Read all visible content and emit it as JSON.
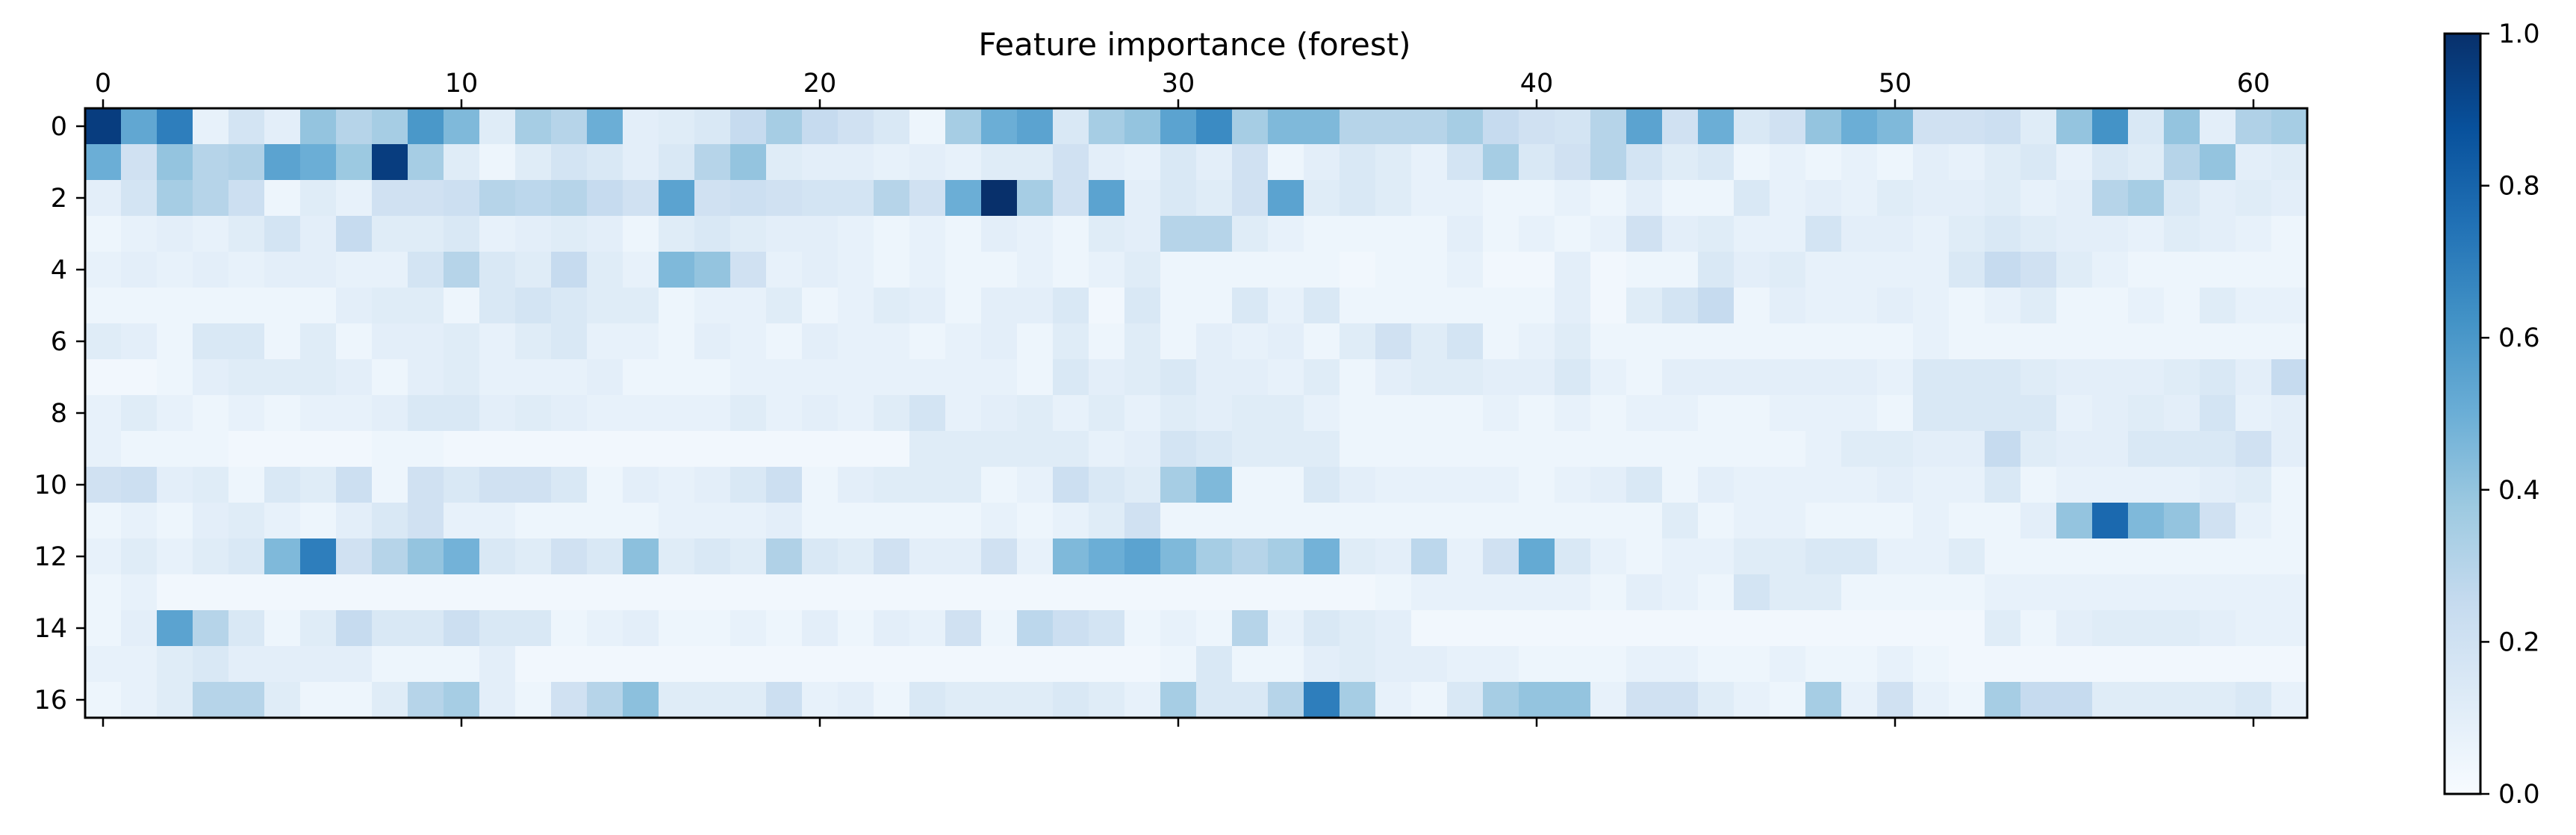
{
  "chart_data": {
    "type": "heatmap",
    "title": "Feature importance (forest)",
    "xlabel": "",
    "ylabel": "",
    "x_ticks": [
      0,
      10,
      20,
      30,
      40,
      50,
      60
    ],
    "y_ticks": [
      0,
      2,
      4,
      6,
      8,
      10,
      12,
      14,
      16
    ],
    "colorbar": {
      "vmin": 0.0,
      "vmax": 1.0,
      "ticks": [
        "0.0",
        "0.2",
        "0.4",
        "0.6",
        "0.8",
        "1.0"
      ]
    },
    "colormap": [
      "#f7fbff",
      "#deebf7",
      "#c6dbef",
      "#9ecae1",
      "#6baed6",
      "#4292c6",
      "#2171b5",
      "#08519c",
      "#08306b"
    ],
    "rows": 17,
    "cols": 62,
    "values": [
      [
        0.95,
        0.53,
        0.7,
        0.08,
        0.18,
        0.1,
        0.4,
        0.3,
        0.35,
        0.6,
        0.45,
        0.12,
        0.35,
        0.3,
        0.5,
        0.1,
        0.12,
        0.15,
        0.25,
        0.35,
        0.25,
        0.2,
        0.15,
        0.05,
        0.35,
        0.5,
        0.55,
        0.15,
        0.35,
        0.4,
        0.55,
        0.65,
        0.35,
        0.45,
        0.45,
        0.3,
        0.3,
        0.3,
        0.35,
        0.25,
        0.2,
        0.18,
        0.3,
        0.55,
        0.2,
        0.5,
        0.15,
        0.2,
        0.4,
        0.5,
        0.45,
        0.2,
        0.2,
        0.22,
        0.12,
        0.4,
        0.62,
        0.15,
        0.4,
        0.1,
        0.32,
        0.35
      ],
      [
        0.5,
        0.2,
        0.4,
        0.3,
        0.32,
        0.55,
        0.5,
        0.38,
        0.95,
        0.35,
        0.12,
        0.05,
        0.12,
        0.18,
        0.15,
        0.1,
        0.15,
        0.3,
        0.4,
        0.12,
        0.1,
        0.1,
        0.08,
        0.1,
        0.08,
        0.12,
        0.12,
        0.2,
        0.1,
        0.08,
        0.15,
        0.1,
        0.2,
        0.05,
        0.1,
        0.15,
        0.12,
        0.08,
        0.18,
        0.35,
        0.15,
        0.2,
        0.3,
        0.18,
        0.12,
        0.15,
        0.05,
        0.08,
        0.05,
        0.08,
        0.05,
        0.1,
        0.08,
        0.12,
        0.15,
        0.08,
        0.15,
        0.12,
        0.3,
        0.4,
        0.1,
        0.12
      ],
      [
        0.1,
        0.18,
        0.35,
        0.3,
        0.22,
        0.05,
        0.12,
        0.08,
        0.2,
        0.2,
        0.22,
        0.3,
        0.28,
        0.3,
        0.25,
        0.2,
        0.55,
        0.2,
        0.22,
        0.2,
        0.18,
        0.18,
        0.3,
        0.2,
        0.5,
        1.0,
        0.35,
        0.2,
        0.55,
        0.1,
        0.15,
        0.12,
        0.2,
        0.55,
        0.12,
        0.15,
        0.12,
        0.08,
        0.08,
        0.05,
        0.05,
        0.08,
        0.05,
        0.1,
        0.05,
        0.05,
        0.15,
        0.08,
        0.1,
        0.08,
        0.12,
        0.1,
        0.1,
        0.12,
        0.08,
        0.1,
        0.3,
        0.35,
        0.15,
        0.1,
        0.12,
        0.1
      ],
      [
        0.05,
        0.08,
        0.1,
        0.08,
        0.12,
        0.18,
        0.1,
        0.25,
        0.12,
        0.12,
        0.15,
        0.08,
        0.1,
        0.12,
        0.1,
        0.05,
        0.12,
        0.15,
        0.12,
        0.1,
        0.1,
        0.08,
        0.05,
        0.08,
        0.05,
        0.1,
        0.08,
        0.05,
        0.12,
        0.1,
        0.3,
        0.3,
        0.12,
        0.08,
        0.05,
        0.05,
        0.05,
        0.05,
        0.1,
        0.05,
        0.08,
        0.05,
        0.08,
        0.2,
        0.1,
        0.12,
        0.08,
        0.08,
        0.18,
        0.1,
        0.1,
        0.08,
        0.12,
        0.15,
        0.12,
        0.1,
        0.1,
        0.08,
        0.12,
        0.1,
        0.08,
        0.05
      ],
      [
        0.08,
        0.1,
        0.08,
        0.1,
        0.08,
        0.1,
        0.1,
        0.08,
        0.08,
        0.18,
        0.3,
        0.15,
        0.12,
        0.25,
        0.12,
        0.08,
        0.45,
        0.4,
        0.2,
        0.08,
        0.1,
        0.08,
        0.05,
        0.08,
        0.05,
        0.05,
        0.08,
        0.05,
        0.08,
        0.12,
        0.05,
        0.05,
        0.05,
        0.05,
        0.05,
        0.03,
        0.05,
        0.05,
        0.08,
        0.03,
        0.03,
        0.1,
        0.03,
        0.05,
        0.05,
        0.15,
        0.1,
        0.12,
        0.08,
        0.08,
        0.08,
        0.08,
        0.15,
        0.25,
        0.2,
        0.12,
        0.08,
        0.05,
        0.05,
        0.05,
        0.05,
        0.05
      ],
      [
        0.05,
        0.05,
        0.05,
        0.05,
        0.05,
        0.05,
        0.05,
        0.1,
        0.12,
        0.12,
        0.05,
        0.15,
        0.18,
        0.15,
        0.12,
        0.12,
        0.05,
        0.08,
        0.08,
        0.12,
        0.05,
        0.08,
        0.12,
        0.1,
        0.05,
        0.1,
        0.1,
        0.15,
        0.03,
        0.15,
        0.05,
        0.05,
        0.15,
        0.08,
        0.15,
        0.05,
        0.05,
        0.05,
        0.05,
        0.05,
        0.05,
        0.1,
        0.03,
        0.12,
        0.18,
        0.25,
        0.05,
        0.1,
        0.08,
        0.08,
        0.1,
        0.08,
        0.05,
        0.08,
        0.12,
        0.05,
        0.05,
        0.08,
        0.05,
        0.12,
        0.08,
        0.08
      ],
      [
        0.12,
        0.1,
        0.05,
        0.15,
        0.15,
        0.05,
        0.12,
        0.05,
        0.1,
        0.1,
        0.12,
        0.08,
        0.12,
        0.15,
        0.08,
        0.08,
        0.05,
        0.1,
        0.08,
        0.05,
        0.1,
        0.08,
        0.08,
        0.05,
        0.08,
        0.1,
        0.05,
        0.12,
        0.05,
        0.12,
        0.05,
        0.1,
        0.08,
        0.1,
        0.05,
        0.12,
        0.2,
        0.12,
        0.18,
        0.05,
        0.08,
        0.12,
        0.05,
        0.05,
        0.05,
        0.05,
        0.05,
        0.05,
        0.05,
        0.05,
        0.05,
        0.08,
        0.05,
        0.05,
        0.05,
        0.05,
        0.05,
        0.05,
        0.05,
        0.05,
        0.05,
        0.05
      ],
      [
        0.03,
        0.03,
        0.05,
        0.1,
        0.12,
        0.12,
        0.12,
        0.1,
        0.05,
        0.1,
        0.12,
        0.08,
        0.08,
        0.08,
        0.1,
        0.05,
        0.05,
        0.05,
        0.08,
        0.08,
        0.08,
        0.08,
        0.08,
        0.08,
        0.08,
        0.08,
        0.05,
        0.15,
        0.1,
        0.12,
        0.15,
        0.1,
        0.1,
        0.08,
        0.12,
        0.05,
        0.1,
        0.12,
        0.12,
        0.1,
        0.1,
        0.15,
        0.08,
        0.05,
        0.1,
        0.1,
        0.1,
        0.1,
        0.1,
        0.1,
        0.08,
        0.15,
        0.15,
        0.15,
        0.12,
        0.1,
        0.1,
        0.1,
        0.12,
        0.15,
        0.1,
        0.25
      ],
      [
        0.08,
        0.12,
        0.08,
        0.05,
        0.08,
        0.05,
        0.08,
        0.08,
        0.1,
        0.15,
        0.15,
        0.1,
        0.12,
        0.1,
        0.08,
        0.08,
        0.08,
        0.08,
        0.12,
        0.08,
        0.1,
        0.08,
        0.12,
        0.18,
        0.08,
        0.1,
        0.12,
        0.08,
        0.12,
        0.08,
        0.12,
        0.1,
        0.12,
        0.12,
        0.08,
        0.05,
        0.05,
        0.05,
        0.05,
        0.08,
        0.05,
        0.08,
        0.05,
        0.08,
        0.08,
        0.05,
        0.05,
        0.08,
        0.08,
        0.08,
        0.05,
        0.15,
        0.15,
        0.15,
        0.15,
        0.08,
        0.1,
        0.12,
        0.1,
        0.18,
        0.08,
        0.1
      ],
      [
        0.08,
        0.05,
        0.05,
        0.05,
        0.03,
        0.03,
        0.03,
        0.03,
        0.05,
        0.05,
        0.03,
        0.03,
        0.03,
        0.03,
        0.03,
        0.03,
        0.03,
        0.03,
        0.03,
        0.03,
        0.03,
        0.03,
        0.03,
        0.12,
        0.12,
        0.12,
        0.12,
        0.12,
        0.08,
        0.1,
        0.18,
        0.15,
        0.12,
        0.12,
        0.12,
        0.05,
        0.05,
        0.05,
        0.05,
        0.05,
        0.05,
        0.05,
        0.05,
        0.05,
        0.05,
        0.05,
        0.05,
        0.05,
        0.08,
        0.12,
        0.12,
        0.1,
        0.1,
        0.25,
        0.12,
        0.1,
        0.1,
        0.15,
        0.15,
        0.15,
        0.2,
        0.1
      ],
      [
        0.2,
        0.22,
        0.1,
        0.12,
        0.05,
        0.15,
        0.12,
        0.22,
        0.05,
        0.2,
        0.15,
        0.2,
        0.2,
        0.15,
        0.05,
        0.1,
        0.08,
        0.1,
        0.15,
        0.22,
        0.05,
        0.1,
        0.12,
        0.12,
        0.12,
        0.05,
        0.08,
        0.22,
        0.15,
        0.12,
        0.35,
        0.45,
        0.05,
        0.05,
        0.15,
        0.1,
        0.08,
        0.08,
        0.08,
        0.08,
        0.05,
        0.08,
        0.1,
        0.15,
        0.05,
        0.1,
        0.08,
        0.08,
        0.08,
        0.08,
        0.1,
        0.08,
        0.08,
        0.15,
        0.05,
        0.08,
        0.08,
        0.08,
        0.08,
        0.1,
        0.12,
        0.05
      ],
      [
        0.05,
        0.08,
        0.05,
        0.1,
        0.12,
        0.08,
        0.05,
        0.1,
        0.15,
        0.2,
        0.08,
        0.08,
        0.05,
        0.05,
        0.05,
        0.05,
        0.08,
        0.08,
        0.08,
        0.1,
        0.05,
        0.05,
        0.05,
        0.05,
        0.05,
        0.08,
        0.05,
        0.08,
        0.12,
        0.2,
        0.05,
        0.05,
        0.05,
        0.05,
        0.05,
        0.05,
        0.05,
        0.05,
        0.05,
        0.05,
        0.05,
        0.05,
        0.05,
        0.05,
        0.12,
        0.05,
        0.08,
        0.08,
        0.05,
        0.05,
        0.05,
        0.08,
        0.05,
        0.05,
        0.1,
        0.4,
        0.78,
        0.45,
        0.4,
        0.2,
        0.08,
        0.05
      ],
      [
        0.08,
        0.12,
        0.08,
        0.12,
        0.15,
        0.45,
        0.7,
        0.2,
        0.3,
        0.4,
        0.48,
        0.15,
        0.12,
        0.2,
        0.15,
        0.42,
        0.12,
        0.15,
        0.12,
        0.32,
        0.15,
        0.12,
        0.2,
        0.1,
        0.1,
        0.2,
        0.08,
        0.45,
        0.5,
        0.55,
        0.45,
        0.35,
        0.3,
        0.35,
        0.48,
        0.12,
        0.1,
        0.28,
        0.08,
        0.2,
        0.52,
        0.15,
        0.08,
        0.05,
        0.08,
        0.08,
        0.12,
        0.12,
        0.15,
        0.15,
        0.08,
        0.08,
        0.12,
        0.05,
        0.05,
        0.05,
        0.05,
        0.05,
        0.05,
        0.05,
        0.05,
        0.05
      ],
      [
        0.05,
        0.08,
        0.03,
        0.03,
        0.03,
        0.03,
        0.03,
        0.03,
        0.03,
        0.03,
        0.03,
        0.03,
        0.03,
        0.03,
        0.03,
        0.03,
        0.03,
        0.03,
        0.03,
        0.03,
        0.03,
        0.03,
        0.03,
        0.03,
        0.03,
        0.03,
        0.03,
        0.03,
        0.03,
        0.03,
        0.03,
        0.03,
        0.03,
        0.03,
        0.03,
        0.03,
        0.05,
        0.08,
        0.08,
        0.08,
        0.08,
        0.08,
        0.05,
        0.1,
        0.08,
        0.05,
        0.18,
        0.12,
        0.12,
        0.05,
        0.05,
        0.05,
        0.05,
        0.08,
        0.08,
        0.08,
        0.08,
        0.08,
        0.08,
        0.08,
        0.08,
        0.08
      ],
      [
        0.05,
        0.1,
        0.55,
        0.3,
        0.15,
        0.05,
        0.12,
        0.25,
        0.15,
        0.15,
        0.22,
        0.15,
        0.15,
        0.05,
        0.08,
        0.1,
        0.05,
        0.05,
        0.08,
        0.05,
        0.1,
        0.05,
        0.1,
        0.08,
        0.2,
        0.05,
        0.28,
        0.22,
        0.18,
        0.05,
        0.08,
        0.05,
        0.3,
        0.08,
        0.15,
        0.12,
        0.1,
        0.03,
        0.03,
        0.03,
        0.03,
        0.03,
        0.03,
        0.03,
        0.03,
        0.03,
        0.03,
        0.03,
        0.03,
        0.03,
        0.03,
        0.03,
        0.03,
        0.12,
        0.05,
        0.1,
        0.12,
        0.12,
        0.12,
        0.1,
        0.08,
        0.08
      ],
      [
        0.08,
        0.08,
        0.12,
        0.15,
        0.1,
        0.1,
        0.1,
        0.1,
        0.05,
        0.05,
        0.05,
        0.1,
        0.03,
        0.03,
        0.03,
        0.03,
        0.03,
        0.03,
        0.03,
        0.03,
        0.03,
        0.03,
        0.03,
        0.03,
        0.03,
        0.03,
        0.03,
        0.03,
        0.03,
        0.03,
        0.05,
        0.15,
        0.05,
        0.05,
        0.1,
        0.12,
        0.1,
        0.1,
        0.08,
        0.08,
        0.05,
        0.05,
        0.05,
        0.08,
        0.08,
        0.05,
        0.05,
        0.08,
        0.05,
        0.05,
        0.08,
        0.05,
        0.03,
        0.03,
        0.03,
        0.03,
        0.03,
        0.03,
        0.03,
        0.03,
        0.03,
        0.03
      ],
      [
        0.05,
        0.08,
        0.12,
        0.3,
        0.3,
        0.12,
        0.05,
        0.05,
        0.12,
        0.3,
        0.35,
        0.1,
        0.05,
        0.2,
        0.3,
        0.42,
        0.12,
        0.12,
        0.12,
        0.22,
        0.08,
        0.1,
        0.05,
        0.15,
        0.12,
        0.12,
        0.12,
        0.15,
        0.12,
        0.08,
        0.35,
        0.15,
        0.15,
        0.3,
        0.7,
        0.35,
        0.08,
        0.05,
        0.15,
        0.35,
        0.4,
        0.4,
        0.08,
        0.2,
        0.2,
        0.12,
        0.08,
        0.05,
        0.35,
        0.08,
        0.2,
        0.08,
        0.05,
        0.35,
        0.25,
        0.25,
        0.12,
        0.12,
        0.12,
        0.12,
        0.15,
        0.08
      ]
    ]
  }
}
